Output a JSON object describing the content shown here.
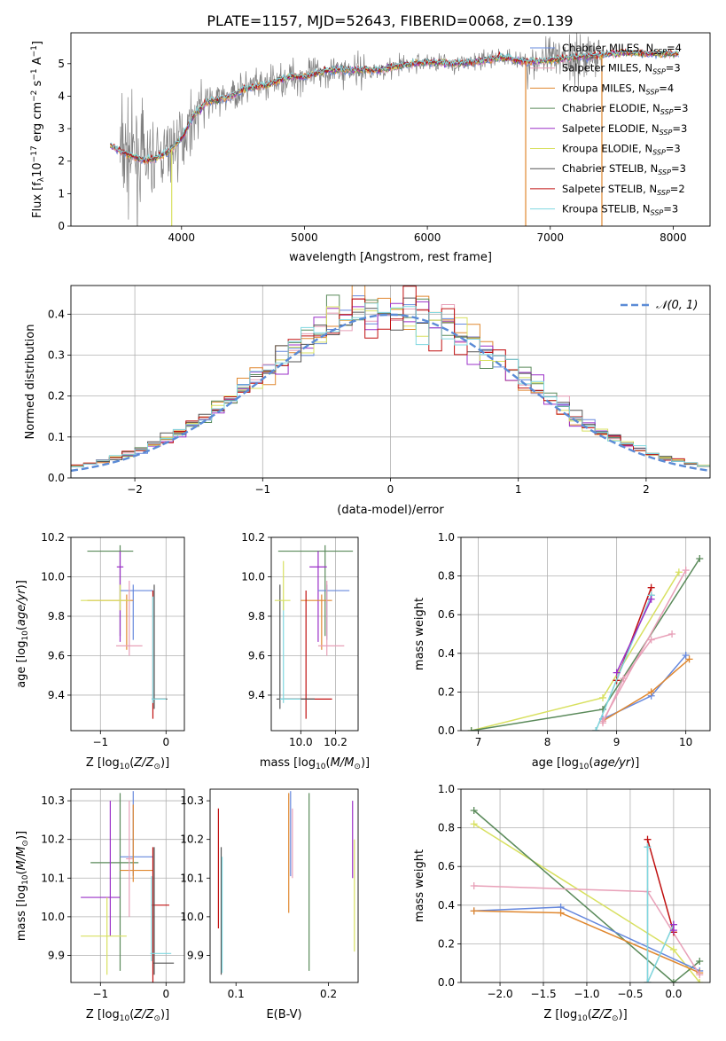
{
  "title": "PLATE=1157, MJD=52643, FIBERID=0068, z=0.139",
  "colors": {
    "Chabrier MILES": "#6688dd",
    "Salpeter MILES": "#e8a0b8",
    "Kroupa MILES": "#e08830",
    "Chabrier ELODIE": "#5a8a5a",
    "Salpeter ELODIE": "#9b30c8",
    "Kroupa ELODIE": "#d8e060",
    "Chabrier STELIB": "#555555",
    "Salpeter STELIB": "#c01010",
    "Kroupa STELIB": "#80d8e0",
    "observed": "#808080",
    "normal": "#5b8bd6"
  },
  "chart_data": [
    {
      "id": "spectrum",
      "type": "line",
      "title": "PLATE=1157, MJD=52643, FIBERID=0068, z=0.139",
      "xlabel": "wavelength [Angstrom, rest frame]",
      "ylabel_parts": [
        "Flux [f",
        "λ",
        "10",
        "−17",
        " erg cm",
        "−2",
        " s",
        "−1",
        " A",
        "−1",
        "]"
      ],
      "xlim": [
        3100,
        8300
      ],
      "ylim": [
        0,
        5.95
      ],
      "xticks": [
        4000,
        5000,
        6000,
        7000,
        8000
      ],
      "yticks": [
        0,
        1,
        2,
        3,
        4,
        5
      ],
      "grid": false,
      "legend_position": "top-right",
      "legend": [
        {
          "name": "Chabrier MILES",
          "nssp": "4"
        },
        {
          "name": "Salpeter MILES",
          "nssp": "3"
        },
        {
          "name": "Kroupa MILES",
          "nssp": "4"
        },
        {
          "name": "Chabrier ELODIE",
          "nssp": "3"
        },
        {
          "name": "Salpeter ELODIE",
          "nssp": "3"
        },
        {
          "name": "Kroupa ELODIE",
          "nssp": "3"
        },
        {
          "name": "Chabrier STELIB",
          "nssp": "3"
        },
        {
          "name": "Salpeter STELIB",
          "nssp": "2"
        },
        {
          "name": "Kroupa STELIB",
          "nssp": "3"
        }
      ],
      "continuum_x": [
        3420,
        3500,
        3600,
        3700,
        3800,
        3900,
        4000,
        4100,
        4200,
        4300,
        4400,
        4500,
        4600,
        4700,
        4800,
        4900,
        5000,
        5200,
        5400,
        5600,
        5800,
        6000,
        6200,
        6400,
        6600,
        6800,
        7000,
        7200,
        7400,
        7600,
        7800,
        8050
      ],
      "continuum_y": [
        2.5,
        2.3,
        2.15,
        2.0,
        2.1,
        2.3,
        2.7,
        3.4,
        3.8,
        3.9,
        4.0,
        4.2,
        4.3,
        4.35,
        4.5,
        4.6,
        4.6,
        4.8,
        4.8,
        4.8,
        4.95,
        5.05,
        5.0,
        5.05,
        5.2,
        5.05,
        5.1,
        5.2,
        5.25,
        5.35,
        5.3,
        5.3
      ],
      "noise_start": 3500,
      "noise_end": 7420,
      "noisy_tail_start": 6800,
      "smooth_end": 8050,
      "drops": [
        {
          "series": "Kroupa MILES",
          "x": 6800
        },
        {
          "series": "Kroupa MILES",
          "x": 7420
        },
        {
          "series": "Kroupa ELODIE",
          "x": 3920
        }
      ],
      "ytick_decimals": 0
    },
    {
      "id": "residuals",
      "type": "step",
      "xlabel": "(data-model)/error",
      "ylabel": "Normed distribution",
      "xlim": [
        -2.5,
        2.5
      ],
      "ylim": [
        0,
        0.47
      ],
      "xticks": [
        -2,
        -1,
        0,
        1,
        2
      ],
      "yticks": [
        0,
        0.1,
        0.2,
        0.3,
        0.4
      ],
      "ytick_decimals": 1,
      "grid": true,
      "legend_position": "top-right",
      "bin_width": 0.1,
      "normal_label": "𝒩(0, 1)"
    },
    {
      "id": "age-vs-z",
      "type": "errorbar",
      "xlabel": "Z [log10(Z/Z⊙)]",
      "ylabel": "age [log10(age/yr)]",
      "xlim": [
        -1.45,
        0.28
      ],
      "ylim": [
        9.22,
        10.2
      ],
      "xticks": [
        -1,
        0
      ],
      "yticks": [
        9.4,
        9.6,
        9.8,
        10.0,
        10.2
      ],
      "ytick_decimals": 1,
      "grid": true,
      "points": [
        {
          "series": "Chabrier ELODIE",
          "x": -0.7,
          "xerr": [
            0.5,
            0.2
          ],
          "y": 10.13,
          "yerr": [
            0.43,
            0.03
          ]
        },
        {
          "series": "Salpeter ELODIE",
          "x": -0.7,
          "xerr": [
            0.05,
            0.05
          ],
          "y": 10.05,
          "yerr": [
            0.38,
            0.08
          ]
        },
        {
          "series": "Chabrier MILES",
          "x": -0.5,
          "xerr": [
            0.2,
            0.3
          ],
          "y": 9.93,
          "yerr": [
            0.25,
            0.03
          ]
        },
        {
          "series": "Kroupa MILES",
          "x": -0.6,
          "xerr": [
            0.6,
            0.1
          ],
          "y": 9.88,
          "yerr": [
            0.25,
            0.03
          ]
        },
        {
          "series": "Salpeter MILES",
          "x": -0.56,
          "xerr": [
            0.2,
            0.2
          ],
          "y": 9.65,
          "yerr": [
            0.05,
            0.33
          ]
        },
        {
          "series": "Salpeter STELIB",
          "x": -0.2,
          "xerr": [
            0.02,
            0.2
          ],
          "y": 9.38,
          "yerr": [
            0.1,
            0.55
          ]
        },
        {
          "series": "Chabrier STELIB",
          "x": -0.18,
          "xerr": [
            0.02,
            0.2
          ],
          "y": 9.38,
          "yerr": [
            0.05,
            0.58
          ]
        },
        {
          "series": "Kroupa STELIB",
          "x": -0.2,
          "xerr": [
            0.02,
            0.2
          ],
          "y": 9.38,
          "yerr": [
            0.02,
            0.52
          ]
        },
        {
          "series": "Kroupa ELODIE",
          "x": -0.7,
          "xerr": [
            0.6,
            0.15
          ],
          "y": 9.88,
          "yerr": [
            0.05,
            0.08
          ]
        }
      ]
    },
    {
      "id": "age-vs-mass",
      "type": "errorbar",
      "xlabel": "mass [log10(M/M⊙)]",
      "xlim": [
        9.83,
        10.33
      ],
      "ylim": [
        9.22,
        10.2
      ],
      "xticks": [
        10.0,
        10.2
      ],
      "yticks": [
        9.4,
        9.6,
        9.8,
        10.0,
        10.2
      ],
      "ytick_decimals": 1,
      "grid": true,
      "points": [
        {
          "series": "Chabrier ELODIE",
          "x": 10.14,
          "xerr": [
            0.27,
            0.16
          ],
          "y": 10.13,
          "yerr": [
            0.43,
            0.03
          ]
        },
        {
          "series": "Salpeter ELODIE",
          "x": 10.1,
          "xerr": [
            0.05,
            0.05
          ],
          "y": 10.05,
          "yerr": [
            0.38,
            0.08
          ]
        },
        {
          "series": "Chabrier MILES",
          "x": 10.15,
          "xerr": [
            0.05,
            0.13
          ],
          "y": 9.93,
          "yerr": [
            0.25,
            0.03
          ]
        },
        {
          "series": "Kroupa MILES",
          "x": 10.12,
          "xerr": [
            0.12,
            0.06
          ],
          "y": 9.88,
          "yerr": [
            0.25,
            0.03
          ]
        },
        {
          "series": "Salpeter MILES",
          "x": 10.15,
          "xerr": [
            0.05,
            0.1
          ],
          "y": 9.65,
          "yerr": [
            0.05,
            0.33
          ]
        },
        {
          "series": "Salpeter STELIB",
          "x": 10.03,
          "xerr": [
            0.13,
            0.15
          ],
          "y": 9.38,
          "yerr": [
            0.1,
            0.55
          ]
        },
        {
          "series": "Chabrier STELIB",
          "x": 9.88,
          "xerr": [
            0.02,
            0.2
          ],
          "y": 9.38,
          "yerr": [
            0.05,
            0.58
          ]
        },
        {
          "series": "Kroupa STELIB",
          "x": 9.9,
          "xerr": [
            0.02,
            0.1
          ],
          "y": 9.38,
          "yerr": [
            0.02,
            0.5
          ]
        },
        {
          "series": "Kroupa ELODIE",
          "x": 9.9,
          "xerr": [
            0.05,
            0.04
          ],
          "y": 9.88,
          "yerr": [
            0.05,
            0.2
          ]
        }
      ]
    },
    {
      "id": "weight-vs-age",
      "type": "line",
      "xlabel": "age [log10(age/yr)]",
      "ylabel": "mass weight",
      "xlim": [
        6.75,
        10.35
      ],
      "ylim": [
        0,
        1.0
      ],
      "xticks": [
        7,
        8,
        9,
        10
      ],
      "yticks": [
        0.0,
        0.2,
        0.4,
        0.6,
        0.8,
        1.0
      ],
      "ytick_decimals": 1,
      "grid": true,
      "series": [
        {
          "name": "Kroupa ELODIE",
          "x": [
            6.9,
            8.8,
            9.9
          ],
          "y": [
            0.0,
            0.17,
            0.82
          ],
          "width": 1.5
        },
        {
          "name": "Chabrier ELODIE",
          "x": [
            6.9,
            8.8,
            10.2
          ],
          "y": [
            0.0,
            0.11,
            0.89
          ],
          "width": 1.5
        },
        {
          "name": "Chabrier MILES",
          "x": [
            8.8,
            9.5,
            10.0
          ],
          "y": [
            0.06,
            0.18,
            0.39
          ],
          "width": 1.5
        },
        {
          "name": "Kroupa MILES",
          "x": [
            8.8,
            9.5,
            10.05
          ],
          "y": [
            0.05,
            0.2,
            0.37
          ],
          "width": 1.5
        },
        {
          "name": "Salpeter MILES",
          "x": [
            8.8,
            9.1,
            9.5,
            9.8
          ],
          "y": [
            0.04,
            0.27,
            0.47,
            0.5
          ],
          "width": 1.5
        },
        {
          "name": "Salpeter MILES",
          "x": [
            8.8,
            10.0
          ],
          "y": [
            0.05,
            0.83
          ],
          "width": 1.5
        },
        {
          "name": "Salpeter STELIB",
          "x": [
            9.0,
            9.5
          ],
          "y": [
            0.26,
            0.74
          ],
          "width": 1.5
        },
        {
          "name": "Chabrier STELIB",
          "x": [
            8.7,
            9.5
          ],
          "y": [
            0.0,
            0.7
          ],
          "width": 1.2
        },
        {
          "name": "Kroupa STELIB",
          "x": [
            8.7,
            9.5
          ],
          "y": [
            0.0,
            0.7
          ],
          "width": 1.5
        },
        {
          "name": "Salpeter ELODIE",
          "x": [
            9.0,
            9.5
          ],
          "y": [
            0.3,
            0.68
          ],
          "width": 1.5
        }
      ]
    },
    {
      "id": "mass-vs-z",
      "type": "errorbar",
      "xlabel": "Z [log10(Z/Z⊙)]",
      "ylabel": "mass [log10(M/M⊙)]",
      "xlim": [
        -1.45,
        0.28
      ],
      "ylim": [
        9.83,
        10.33
      ],
      "xticks": [
        -1,
        0
      ],
      "yticks": [
        9.9,
        10.0,
        10.1,
        10.2,
        10.3
      ],
      "ytick_decimals": 1,
      "grid": true,
      "points": [
        {
          "series": "Chabrier ELODIE",
          "x": -0.7,
          "xerr": [
            0.45,
            0.28
          ],
          "y": 10.14,
          "yerr": [
            0.28,
            0.18
          ]
        },
        {
          "series": "Salpeter ELODIE",
          "x": -0.85,
          "xerr": [
            0.45,
            0.15
          ],
          "y": 10.05,
          "yerr": [
            0.1,
            0.25
          ]
        },
        {
          "series": "Chabrier MILES",
          "x": -0.5,
          "xerr": [
            0.2,
            0.3
          ],
          "y": 10.155,
          "yerr": [
            0.05,
            0.17
          ]
        },
        {
          "series": "Kroupa MILES",
          "x": -0.5,
          "xerr": [
            0.2,
            0.3
          ],
          "y": 10.12,
          "yerr": [
            0.03,
            0.17
          ]
        },
        {
          "series": "Salpeter MILES",
          "x": -0.56,
          "xerr": [
            0.05,
            0.05
          ],
          "y": 10.15,
          "yerr": [
            0.15,
            0.15
          ]
        },
        {
          "series": "Salpeter STELIB",
          "x": -0.2,
          "xerr": [
            0.02,
            0.25
          ],
          "y": 10.03,
          "yerr": [
            0.2,
            0.15
          ]
        },
        {
          "series": "Chabrier STELIB",
          "x": -0.18,
          "xerr": [
            0.02,
            0.3
          ],
          "y": 9.88,
          "yerr": [
            0.03,
            0.3
          ]
        },
        {
          "series": "Kroupa STELIB",
          "x": -0.22,
          "xerr": [
            0.02,
            0.3
          ],
          "y": 9.905,
          "yerr": [
            0.02,
            0.2
          ]
        },
        {
          "series": "Kroupa ELODIE",
          "x": -0.9,
          "xerr": [
            0.4,
            0.3
          ],
          "y": 9.95,
          "yerr": [
            0.1,
            0.1
          ]
        }
      ]
    },
    {
      "id": "mass-vs-ebv",
      "type": "errorbar",
      "xlabel": "E(B-V)",
      "xlim": [
        0.072,
        0.232
      ],
      "ylim": [
        9.83,
        10.33
      ],
      "xticks": [
        0.1,
        0.2
      ],
      "yticks": [
        9.9,
        10.0,
        10.1,
        10.2,
        10.3
      ],
      "ytick_decimals": 1,
      "grid": false,
      "points": [
        {
          "series": "Salpeter STELIB",
          "x": 0.081,
          "xerr": [
            0.0,
            0.0
          ],
          "y": 10.03,
          "yerr": [
            0.06,
            0.25
          ]
        },
        {
          "series": "Chabrier STELIB",
          "x": 0.084,
          "xerr": [
            0.0,
            0.0
          ],
          "y": 9.88,
          "yerr": [
            0.03,
            0.3
          ]
        },
        {
          "series": "Kroupa STELIB",
          "x": 0.085,
          "xerr": [
            0.0,
            0.0
          ],
          "y": 9.905,
          "yerr": [
            0.05,
            0.25
          ]
        },
        {
          "series": "Kroupa MILES",
          "x": 0.157,
          "xerr": [
            0.0,
            0.0
          ],
          "y": 10.12,
          "yerr": [
            0.11,
            0.2
          ]
        },
        {
          "series": "Chabrier MILES",
          "x": 0.159,
          "xerr": [
            0.0,
            0.0
          ],
          "y": 10.155,
          "yerr": [
            0.05,
            0.17
          ]
        },
        {
          "series": "Salpeter MILES",
          "x": 0.161,
          "xerr": [
            0.0,
            0.0
          ],
          "y": 10.15,
          "yerr": [
            0.05,
            0.13
          ]
        },
        {
          "series": "Chabrier ELODIE",
          "x": 0.179,
          "xerr": [
            0.0,
            0.0
          ],
          "y": 10.14,
          "yerr": [
            0.28,
            0.18
          ]
        },
        {
          "series": "Salpeter ELODIE",
          "x": 0.226,
          "xerr": [
            0.0,
            0.0
          ],
          "y": 10.2,
          "yerr": [
            0.1,
            0.1
          ]
        },
        {
          "series": "Kroupa ELODIE",
          "x": 0.228,
          "xerr": [
            0.0,
            0.0
          ],
          "y": 10.05,
          "yerr": [
            0.14,
            0.15
          ]
        }
      ]
    },
    {
      "id": "weight-vs-z",
      "type": "line",
      "xlabel": "Z [log10(Z/Z⊙)]",
      "ylabel": "mass weight",
      "xlim": [
        -2.45,
        0.42
      ],
      "ylim": [
        0,
        1.0
      ],
      "xticks": [
        -2.0,
        -1.5,
        -1.0,
        -0.5,
        0.0
      ],
      "yticks": [
        0.0,
        0.2,
        0.4,
        0.6,
        0.8,
        1.0
      ],
      "ytick_decimals": 1,
      "grid": true,
      "series": [
        {
          "name": "Kroupa ELODIE",
          "x": [
            -2.3,
            0.0,
            0.3
          ],
          "y": [
            0.82,
            0.17,
            0.0
          ],
          "width": 1.5
        },
        {
          "name": "Chabrier ELODIE",
          "x": [
            -2.3,
            0.0,
            0.3
          ],
          "y": [
            0.89,
            0.0,
            0.11
          ],
          "width": 1.5
        },
        {
          "name": "Chabrier MILES",
          "x": [
            -2.3,
            -1.3,
            0.3
          ],
          "y": [
            0.37,
            0.39,
            0.06
          ],
          "width": 1.5
        },
        {
          "name": "Kroupa MILES",
          "x": [
            -2.3,
            -1.3,
            0.3
          ],
          "y": [
            0.37,
            0.36,
            0.05
          ],
          "width": 1.5
        },
        {
          "name": "Salpeter MILES",
          "x": [
            -2.3,
            -0.3,
            0.3
          ],
          "y": [
            0.5,
            0.47,
            0.04
          ],
          "width": 1.5
        },
        {
          "name": "Salpeter STELIB",
          "x": [
            -0.3,
            0.0
          ],
          "y": [
            0.74,
            0.26
          ],
          "width": 1.5
        },
        {
          "name": "Chabrier STELIB",
          "x": [
            -0.3,
            -0.3,
            0.0
          ],
          "y": [
            0.7,
            0.0,
            0.3
          ],
          "width": 1.2
        },
        {
          "name": "Kroupa STELIB",
          "x": [
            -0.3,
            -0.3,
            0.0
          ],
          "y": [
            0.7,
            0.0,
            0.3
          ],
          "width": 1.5
        },
        {
          "name": "Salpeter ELODIE",
          "x": [
            0.0,
            0.0
          ],
          "y": [
            0.3,
            0.27
          ],
          "width": 1.5
        }
      ]
    }
  ]
}
